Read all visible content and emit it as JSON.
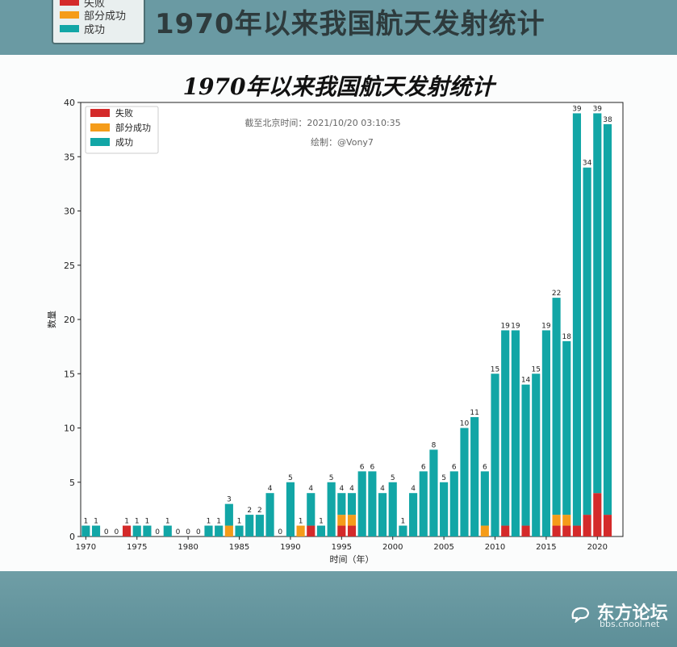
{
  "banner": {
    "title": "1970年以来我国航天发射统计",
    "legend": [
      {
        "label": "失败",
        "color": "#d42a2a"
      },
      {
        "label": "部分成功",
        "color": "#f59c1a"
      },
      {
        "label": "成功",
        "color": "#12a6a6"
      }
    ]
  },
  "page_title": "1970年以来我国航天发射统计",
  "watermark": {
    "brand": "东方论坛",
    "url": "bbs.cnool.net"
  },
  "chart_data": {
    "type": "bar",
    "stacked": true,
    "xlabel": "时间（年）",
    "ylabel": "数量",
    "ylim": [
      0,
      40
    ],
    "yticks": [
      0,
      5,
      10,
      15,
      20,
      25,
      30,
      35,
      40
    ],
    "xticks": [
      1970,
      1975,
      1980,
      1985,
      1990,
      1995,
      2000,
      2005,
      2010,
      2015,
      2020
    ],
    "annotation_lines": [
      "截至北京时间：2021/10/20 03:10:35",
      "绘制：@Vony7"
    ],
    "legend_position": "top-left",
    "categories": [
      1970,
      1971,
      1972,
      1973,
      1974,
      1975,
      1976,
      1977,
      1978,
      1979,
      1980,
      1981,
      1982,
      1983,
      1984,
      1985,
      1986,
      1987,
      1988,
      1989,
      1990,
      1991,
      1992,
      1993,
      1994,
      1995,
      1996,
      1997,
      1998,
      1999,
      2000,
      2001,
      2002,
      2003,
      2004,
      2005,
      2006,
      2007,
      2008,
      2009,
      2010,
      2011,
      2012,
      2013,
      2014,
      2015,
      2016,
      2017,
      2018,
      2019,
      2020,
      2021
    ],
    "series": [
      {
        "name": "失败",
        "color": "#d42a2a",
        "values": [
          0,
          0,
          0,
          0,
          1,
          0,
          0,
          0,
          0,
          0,
          0,
          0,
          0,
          0,
          0,
          0,
          0,
          0,
          0,
          0,
          0,
          0,
          1,
          0,
          0,
          1,
          1,
          0,
          0,
          0,
          0,
          0,
          0,
          0,
          0,
          0,
          0,
          0,
          0,
          0,
          0,
          1,
          0,
          1,
          0,
          0,
          1,
          1,
          1,
          2,
          4,
          2
        ]
      },
      {
        "name": "部分成功",
        "color": "#f59c1a",
        "values": [
          0,
          0,
          0,
          0,
          0,
          0,
          0,
          0,
          0,
          0,
          0,
          0,
          0,
          0,
          1,
          0,
          0,
          0,
          0,
          0,
          0,
          1,
          0,
          0,
          0,
          1,
          1,
          0,
          0,
          0,
          0,
          0,
          0,
          0,
          0,
          0,
          0,
          0,
          0,
          1,
          0,
          0,
          0,
          0,
          0,
          0,
          1,
          1,
          0,
          0,
          0,
          0
        ]
      },
      {
        "name": "成功",
        "color": "#12a6a6",
        "values": [
          1,
          1,
          0,
          0,
          0,
          1,
          1,
          0,
          1,
          0,
          0,
          0,
          1,
          1,
          2,
          1,
          2,
          2,
          4,
          0,
          5,
          0,
          3,
          1,
          5,
          2,
          2,
          6,
          6,
          4,
          5,
          1,
          4,
          6,
          8,
          5,
          6,
          10,
          11,
          5,
          15,
          18,
          19,
          13,
          15,
          19,
          20,
          16,
          38,
          32,
          35,
          36
        ]
      }
    ],
    "totals": [
      1,
      1,
      0,
      0,
      1,
      1,
      1,
      0,
      1,
      0,
      0,
      0,
      1,
      1,
      3,
      1,
      2,
      2,
      4,
      0,
      5,
      1,
      4,
      1,
      5,
      4,
      4,
      6,
      6,
      4,
      5,
      1,
      4,
      6,
      8,
      5,
      6,
      10,
      11,
      6,
      15,
      19,
      19,
      14,
      15,
      19,
      22,
      18,
      39,
      34,
      39,
      38
    ]
  }
}
